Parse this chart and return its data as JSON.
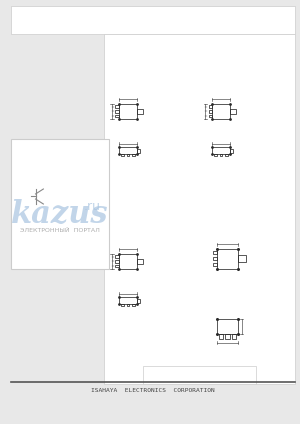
{
  "bg_color": "#f0f0f0",
  "white": "#ffffff",
  "dark": "#222222",
  "gray": "#999999",
  "light_gray": "#cccccc",
  "blue_watermark": "#a8c4e0",
  "footer_text": "ISAHAYA  ELECTRONICS  CORPORATION",
  "watermark_text": "kazus",
  "watermark_sub": ".ru",
  "watermark_portal": "ЭЛЕКТРОННЫЙ  ПОРТАЛ",
  "page_bg": "#e8e8e8",
  "diagram_bg": "#f8f8f8"
}
